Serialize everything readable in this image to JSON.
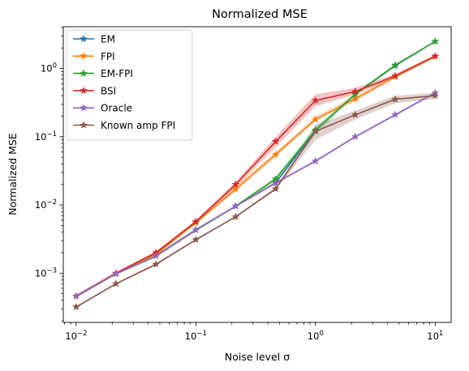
{
  "chart_data": {
    "type": "line",
    "title": "Normalized MSE",
    "xlabel": "Noise level σ",
    "ylabel": "Normalized MSE",
    "xscale": "log",
    "yscale": "log",
    "xlim": [
      0.0078,
      0.0136
    ],
    "x_ticks": [
      {
        "value": 0.01,
        "base": "10",
        "exp": "−2"
      },
      {
        "value": 0.1,
        "base": "10",
        "exp": "−1"
      },
      {
        "value": 1,
        "base": "10",
        "exp": "0"
      },
      {
        "value": 10,
        "base": "10",
        "exp": "1"
      }
    ],
    "y_ticks": [
      {
        "value": 0.001,
        "base": "10",
        "exp": "−3"
      },
      {
        "value": 0.01,
        "base": "10",
        "exp": "−2"
      },
      {
        "value": 0.1,
        "base": "10",
        "exp": "−1"
      },
      {
        "value": 1,
        "base": "10",
        "exp": "0"
      }
    ],
    "legend_position": "top-left",
    "grid": false,
    "x": [
      0.01,
      0.0215,
      0.0464,
      0.1,
      0.215,
      0.464,
      1,
      2.15,
      4.64,
      10
    ],
    "series": [
      {
        "name": "EM",
        "color": "#1f77b4",
        "values": [
          0.00046,
          0.00098,
          0.0018,
          0.0043,
          0.0096,
          0.021,
          0.125,
          0.42,
          1.1,
          2.5
        ],
        "band": null
      },
      {
        "name": "FPI",
        "color": "#ff7f0e",
        "values": [
          0.00046,
          0.00098,
          0.0019,
          0.0055,
          0.017,
          0.055,
          0.18,
          0.36,
          0.76,
          1.5
        ],
        "band": [
          [
            0.00044,
            0.00048
          ],
          [
            0.00095,
            0.00102
          ],
          [
            0.0018,
            0.002
          ],
          [
            0.0052,
            0.0058
          ],
          [
            0.016,
            0.019
          ],
          [
            0.05,
            0.06
          ],
          [
            0.17,
            0.2
          ],
          [
            0.33,
            0.4
          ],
          [
            0.72,
            0.82
          ],
          [
            1.45,
            1.58
          ]
        ]
      },
      {
        "name": "EM-FPI",
        "color": "#2ca02c",
        "values": [
          0.00046,
          0.00098,
          0.0018,
          0.0043,
          0.0096,
          0.024,
          0.125,
          0.42,
          1.12,
          2.5
        ],
        "band": [
          [
            0.00044,
            0.00048
          ],
          [
            0.00095,
            0.00102
          ],
          [
            0.0017,
            0.0019
          ],
          [
            0.0041,
            0.0045
          ],
          [
            0.0093,
            0.0099
          ],
          [
            0.022,
            0.026
          ],
          [
            0.11,
            0.14
          ],
          [
            0.4,
            0.45
          ],
          [
            1.08,
            1.17
          ],
          [
            2.45,
            2.56
          ]
        ]
      },
      {
        "name": "BSI",
        "color": "#d62728",
        "values": [
          0.00046,
          0.001,
          0.002,
          0.0057,
          0.02,
          0.085,
          0.34,
          0.46,
          0.78,
          1.52
        ],
        "band": [
          [
            0.00044,
            0.00049
          ],
          [
            0.00096,
            0.00105
          ],
          [
            0.0019,
            0.0021
          ],
          [
            0.0054,
            0.006
          ],
          [
            0.018,
            0.022
          ],
          [
            0.07,
            0.1
          ],
          [
            0.28,
            0.42
          ],
          [
            0.42,
            0.52
          ],
          [
            0.74,
            0.83
          ],
          [
            1.46,
            1.6
          ]
        ]
      },
      {
        "name": "Oracle",
        "color": "#9467bd",
        "values": [
          0.00046,
          0.00098,
          0.0018,
          0.0043,
          0.0096,
          0.021,
          0.044,
          0.1,
          0.21,
          0.44
        ],
        "band": [
          [
            0.00044,
            0.00048
          ],
          [
            0.00095,
            0.00102
          ],
          [
            0.0017,
            0.0019
          ],
          [
            0.0041,
            0.0045
          ],
          [
            0.0093,
            0.0099
          ],
          [
            0.02,
            0.022
          ],
          [
            0.042,
            0.046
          ],
          [
            0.096,
            0.104
          ],
          [
            0.2,
            0.22
          ],
          [
            0.42,
            0.46
          ]
        ]
      },
      {
        "name": "Known amp FPI",
        "color": "#8c564b",
        "values": [
          0.00032,
          0.0007,
          0.00135,
          0.0031,
          0.0067,
          0.0172,
          0.12,
          0.21,
          0.355,
          0.4
        ],
        "band": [
          [
            0.00031,
            0.00033
          ],
          [
            0.00068,
            0.00072
          ],
          [
            0.0013,
            0.0014
          ],
          [
            0.003,
            0.0032
          ],
          [
            0.0065,
            0.0069
          ],
          [
            0.0165,
            0.018
          ],
          [
            0.09,
            0.15
          ],
          [
            0.18,
            0.24
          ],
          [
            0.31,
            0.4
          ],
          [
            0.36,
            0.44
          ]
        ]
      }
    ]
  }
}
